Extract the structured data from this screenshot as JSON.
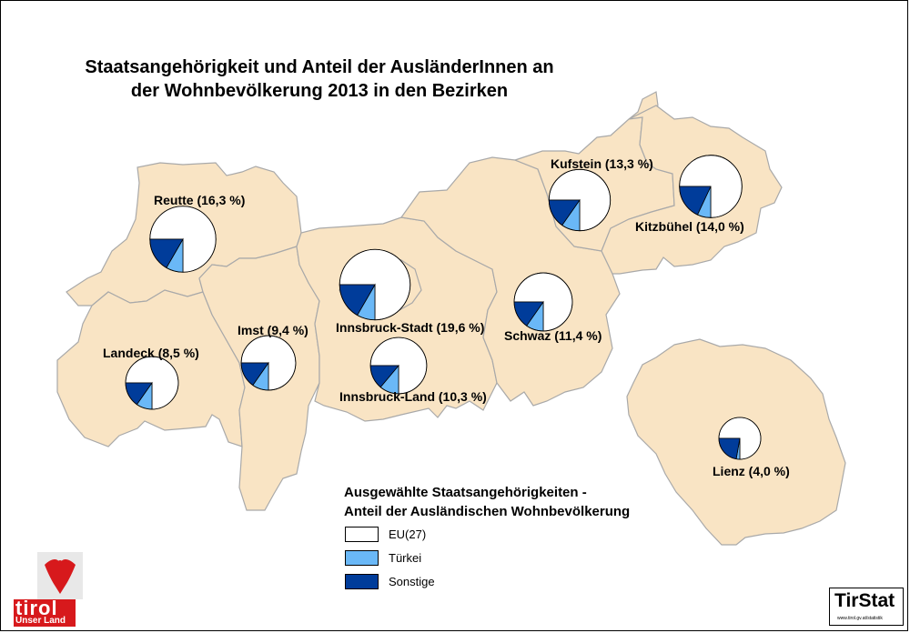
{
  "title_line1": "Staatsangehörigkeit und Anteil der AusländerInnen an",
  "title_line2": "der Wohnbevölkerung 2013 in den Bezirken",
  "legend": {
    "title_line1": "Ausgewählte Staatsangehörigkeiten -",
    "title_line2": "Anteil der Ausländischen Wohnbevölkerung",
    "items": [
      {
        "label": "EU(27)",
        "color": "#ffffff"
      },
      {
        "label": "Türkei",
        "color": "#6ab8f7"
      },
      {
        "label": "Sonstige",
        "color": "#003c9a"
      }
    ]
  },
  "colors": {
    "region_fill": "#f9e4c4",
    "region_border": "#a9a9a9",
    "eu": "#ffffff",
    "tuerkei": "#6ab8f7",
    "sonstige": "#003c9a"
  },
  "districts": [
    {
      "name": "Reutte",
      "label": "Reutte (16,3 %)",
      "share_pct": 16.3
    },
    {
      "name": "Landeck",
      "label": "Landeck (8,5 %)",
      "share_pct": 8.5
    },
    {
      "name": "Imst",
      "label": "Imst (9,4 %)",
      "share_pct": 9.4
    },
    {
      "name": "Innsbruck-Stadt",
      "label": "Innsbruck-Stadt (19,6 %)",
      "share_pct": 19.6
    },
    {
      "name": "Innsbruck-Land",
      "label": "Innsbruck-Land (10,3 %)",
      "share_pct": 10.3
    },
    {
      "name": "Schwaz",
      "label": "Schwaz (11,4 %)",
      "share_pct": 11.4
    },
    {
      "name": "Kufstein",
      "label": "Kufstein (13,3 %)",
      "share_pct": 13.3
    },
    {
      "name": "Kitzbühel",
      "label": "Kitzbühel (14,0 %)",
      "share_pct": 14.0
    },
    {
      "name": "Lienz",
      "label": "Lienz (4,0 %)",
      "share_pct": 4.0
    }
  ],
  "logos": {
    "tirol_word": "tirol",
    "tirol_sub": "Unser Land",
    "tirstat_word": "TirStat",
    "tirstat_url": "www.tirol.gv.at/statistik"
  }
}
